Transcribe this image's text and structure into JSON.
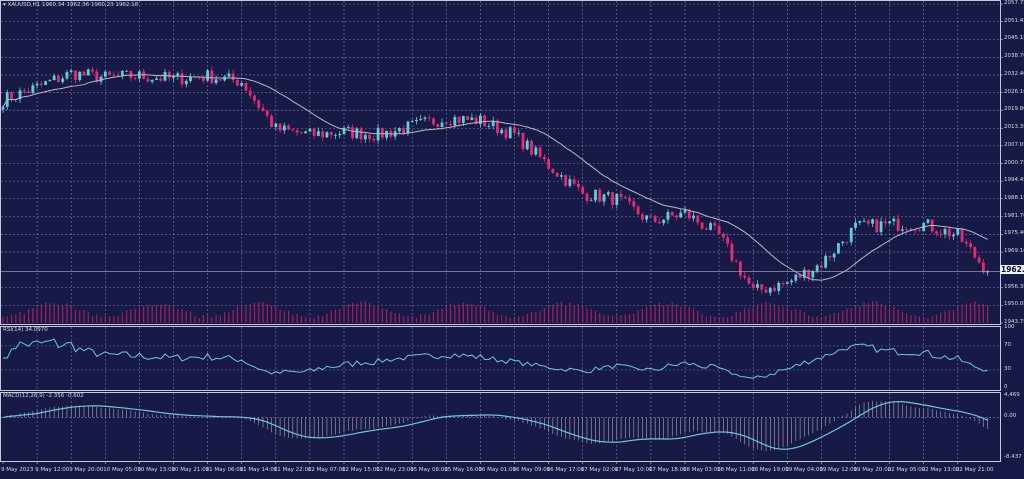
{
  "main_label": "XAUUSD,H1  1960.34 1962.36 1960.23 1962.18",
  "rsi_label": "RSI(14) 34.0970",
  "macd_label": "MACD(12,26,9) -2.356 -0.602",
  "current_price": "1962.18",
  "colors": {
    "background": "#171a46",
    "bull": "#5cd0d8",
    "bear": "#e62a73",
    "ma": "#b8b8c8",
    "volume": "#a3205f",
    "indicator": "#6cc8d8",
    "grid": "#7a7fa6"
  },
  "chart_data": [
    {
      "type": "candlestick",
      "symbol": "XAUUSD",
      "timeframe": "H1",
      "categories": [
        "9 May 2023",
        "9 May 12:00",
        "9 May 20:00",
        "10 May 05:00",
        "10 May 13:00",
        "10 May 21:00",
        "11 May 06:00",
        "11 May 14:00",
        "11 May 22:00",
        "12 May 07:00",
        "12 May 15:00",
        "12 May 23:00",
        "15 May 08:00",
        "15 May 16:00",
        "16 May 01:00",
        "16 May 09:00",
        "16 May 17:00",
        "17 May 02:00",
        "17 May 10:00",
        "17 May 18:00",
        "18 May 03:00",
        "18 May 11:00",
        "18 May 19:00",
        "19 May 04:00",
        "19 May 12:00",
        "19 May 20:00",
        "22 May 05:00",
        "22 May 13:00",
        "22 May 21:00"
      ],
      "close_approx": [
        2023.5,
        2028,
        2033,
        2031.5,
        2032,
        2031,
        2032,
        2030,
        2013,
        2011,
        2012,
        2011,
        2014,
        2017,
        2016,
        2011,
        2000,
        1990,
        1988,
        1980,
        1983,
        1975,
        1955,
        1958,
        1965,
        1978,
        1979,
        1979,
        1975
      ],
      "last_close": 1962.18,
      "y_ticks": [
        "2057.75",
        "2051.45",
        "2045.15",
        "2038.70",
        "2032.40",
        "2026.10",
        "2019.80",
        "2013.35",
        "2007.05",
        "2000.75",
        "1994.45",
        "1988.15",
        "1981.70",
        "1975.40",
        "1969.10",
        "1956.35",
        "1950.05",
        "1943.75"
      ],
      "ylim": [
        1943.75,
        2057.75
      ],
      "overlays": [
        "moving average",
        "volume"
      ],
      "grid": true
    },
    {
      "type": "line",
      "name": "RSI(14)",
      "y_ticks": [
        "100",
        "70",
        "30",
        "0"
      ],
      "ylim": [
        0,
        100
      ],
      "last_value": 34.097
    },
    {
      "type": "bar+line",
      "name": "MACD(12,26,9)",
      "y_ticks": [
        "4.469",
        "0.00",
        "-8.437"
      ],
      "ylim": [
        -8.437,
        4.469
      ],
      "main": -2.356,
      "signal": -0.602
    }
  ]
}
